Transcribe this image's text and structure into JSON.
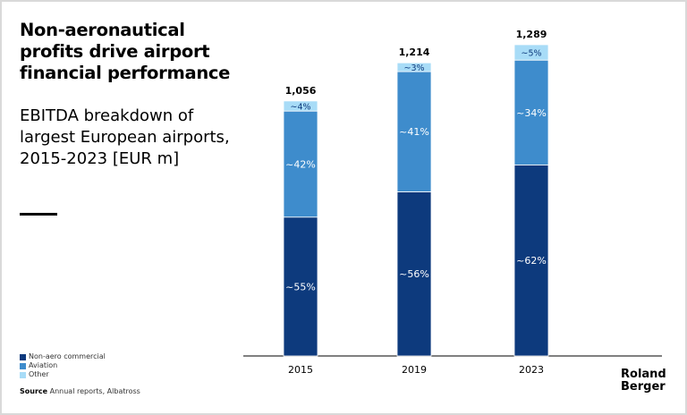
{
  "title": "Non-aeronautical profits drive airport financial performance",
  "subtitle": "EBITDA breakdown of largest European airports, 2015-2023 [EUR m]",
  "source_label": "Source",
  "source_text": "Annual reports, Albatross",
  "logo": [
    "Roland",
    "Berger"
  ],
  "chart_data": {
    "type": "bar",
    "stacked": true,
    "categories": [
      "2015",
      "2019",
      "2023"
    ],
    "totals": [
      1056,
      1214,
      1289
    ],
    "total_labels": [
      "1,056",
      "1,214",
      "1,289"
    ],
    "series": [
      {
        "name": "Non-aero commercial",
        "color": "#0d3a7d",
        "share_pct": [
          55,
          56,
          62
        ],
        "labels": [
          "~55%",
          "~56%",
          "~62%"
        ]
      },
      {
        "name": "Aviation",
        "color": "#3e8ccc",
        "share_pct": [
          42,
          41,
          34
        ],
        "labels": [
          "~42%",
          "~41%",
          "~34%"
        ]
      },
      {
        "name": "Other",
        "color": "#a8dcf7",
        "share_pct": [
          4,
          3,
          5
        ],
        "labels": [
          "~4%",
          "~3%",
          "~5%"
        ]
      }
    ],
    "legend": "bottom-left",
    "grid": false
  }
}
